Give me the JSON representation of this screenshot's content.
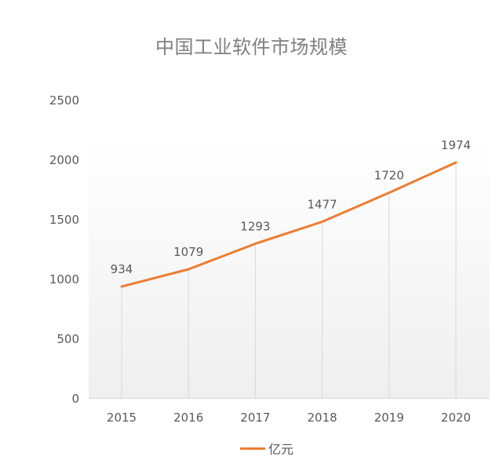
{
  "chart_data": {
    "type": "line",
    "title": "中国工业软件市场规模",
    "categories": [
      "2015",
      "2016",
      "2017",
      "2018",
      "2019",
      "2020"
    ],
    "series": [
      {
        "name": "亿元",
        "values": [
          934,
          1079,
          1293,
          1477,
          1720,
          1974
        ],
        "color": "#ed7d31"
      }
    ],
    "data_labels": [
      "934",
      "1079",
      "1293",
      "1477",
      "1720",
      "1974"
    ],
    "xlabel": "",
    "ylabel": "",
    "ylim": [
      0,
      2500
    ],
    "yticks": [
      "0",
      "500",
      "1000",
      "1500",
      "2000",
      "2500"
    ],
    "grid": "vertical lines at categories",
    "legend_position": "bottom"
  },
  "colors": {
    "line": "#ed7d31",
    "title": "#7f7f7f",
    "axis_text": "#595959",
    "gridline": "#d9d9d9",
    "plot_bg_top": "#ffffff",
    "plot_bg_bottom": "#f0f0f0"
  }
}
